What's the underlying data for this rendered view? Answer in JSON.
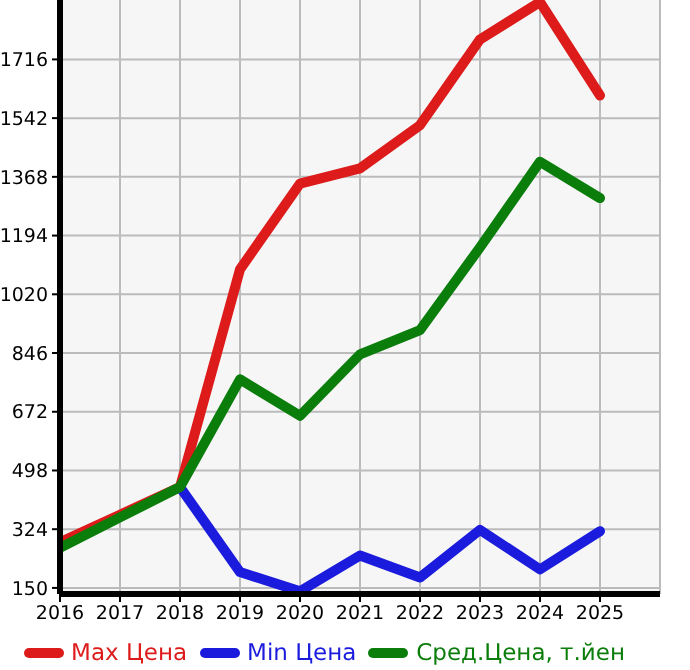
{
  "chart_data": {
    "type": "line",
    "x": [
      2016,
      2017,
      2018,
      2019,
      2020,
      2021,
      2022,
      2023,
      2024,
      2025
    ],
    "series": [
      {
        "name": "Max Цена",
        "color": "#dd1b1b",
        "values": [
          285,
          367,
          449,
          1094,
          1348,
          1393,
          1521,
          1775,
          1886,
          1609
        ]
      },
      {
        "name": "Min Цена",
        "color": "#1b1bdd",
        "values": [
          null,
          null,
          449,
          197,
          140,
          246,
          181,
          322,
          205,
          318
        ]
      },
      {
        "name": "Сред.Цена, т.йен",
        "color": "#0a7d0a",
        "values": [
          269,
          359,
          449,
          768,
          660,
          842,
          914,
          1159,
          1413,
          1305
        ]
      }
    ],
    "xlim": [
      2016,
      2026
    ],
    "xticks": [
      2016,
      2017,
      2018,
      2019,
      2020,
      2021,
      2022,
      2023,
      2024,
      2025
    ],
    "ylim": [
      132,
      1892
    ],
    "yticks": [
      150,
      324,
      498,
      672,
      846,
      1020,
      1194,
      1368,
      1542,
      1716
    ],
    "grid": true,
    "legend": "bottom",
    "marker": "none",
    "line_style": "solid"
  }
}
